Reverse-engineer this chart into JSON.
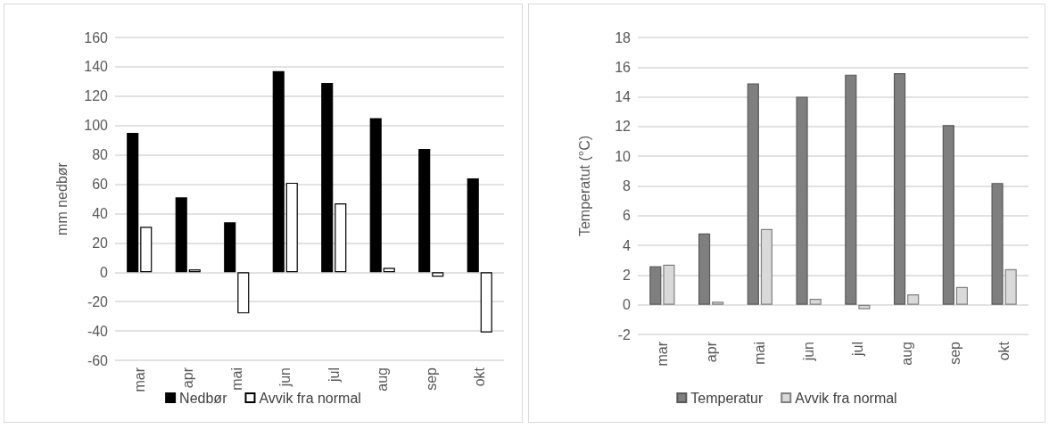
{
  "chart_data": [
    {
      "type": "bar",
      "ylabel": "mm nedbør",
      "categories": [
        "mar",
        "apr",
        "mai",
        "jun",
        "jul",
        "aug",
        "sep",
        "okt"
      ],
      "series": [
        {
          "name": "Nedbør",
          "color": "#000000",
          "values": [
            95,
            51,
            34,
            137,
            129,
            105,
            84,
            64
          ]
        },
        {
          "name": "Avvik fra normal",
          "color": "#ffffff",
          "values": [
            31,
            2,
            -28,
            61,
            47,
            3,
            -3,
            -41
          ]
        }
      ],
      "ylim": [
        -60,
        160
      ],
      "yticks": [
        -60,
        -40,
        -20,
        0,
        20,
        40,
        60,
        80,
        100,
        120,
        140,
        160
      ],
      "grid": "y",
      "legend": "bottom"
    },
    {
      "type": "bar",
      "ylabel": "Temperatut (°C)",
      "categories": [
        "mar",
        "apr",
        "mai",
        "jun",
        "jul",
        "aug",
        "sep",
        "okt"
      ],
      "series": [
        {
          "name": "Temperatur",
          "color": "#7f7f7f",
          "values": [
            2.6,
            4.8,
            14.9,
            14.0,
            15.5,
            15.6,
            12.1,
            8.2
          ]
        },
        {
          "name": "Avvik fra normal",
          "color": "#d9d9d9",
          "values": [
            2.7,
            0.2,
            5.1,
            0.4,
            -0.3,
            0.7,
            1.2,
            2.4
          ]
        }
      ],
      "ylim": [
        -2,
        18
      ],
      "yticks": [
        -2,
        0,
        2,
        4,
        6,
        8,
        10,
        12,
        14,
        16,
        18
      ],
      "grid": "y",
      "legend": "bottom"
    }
  ]
}
